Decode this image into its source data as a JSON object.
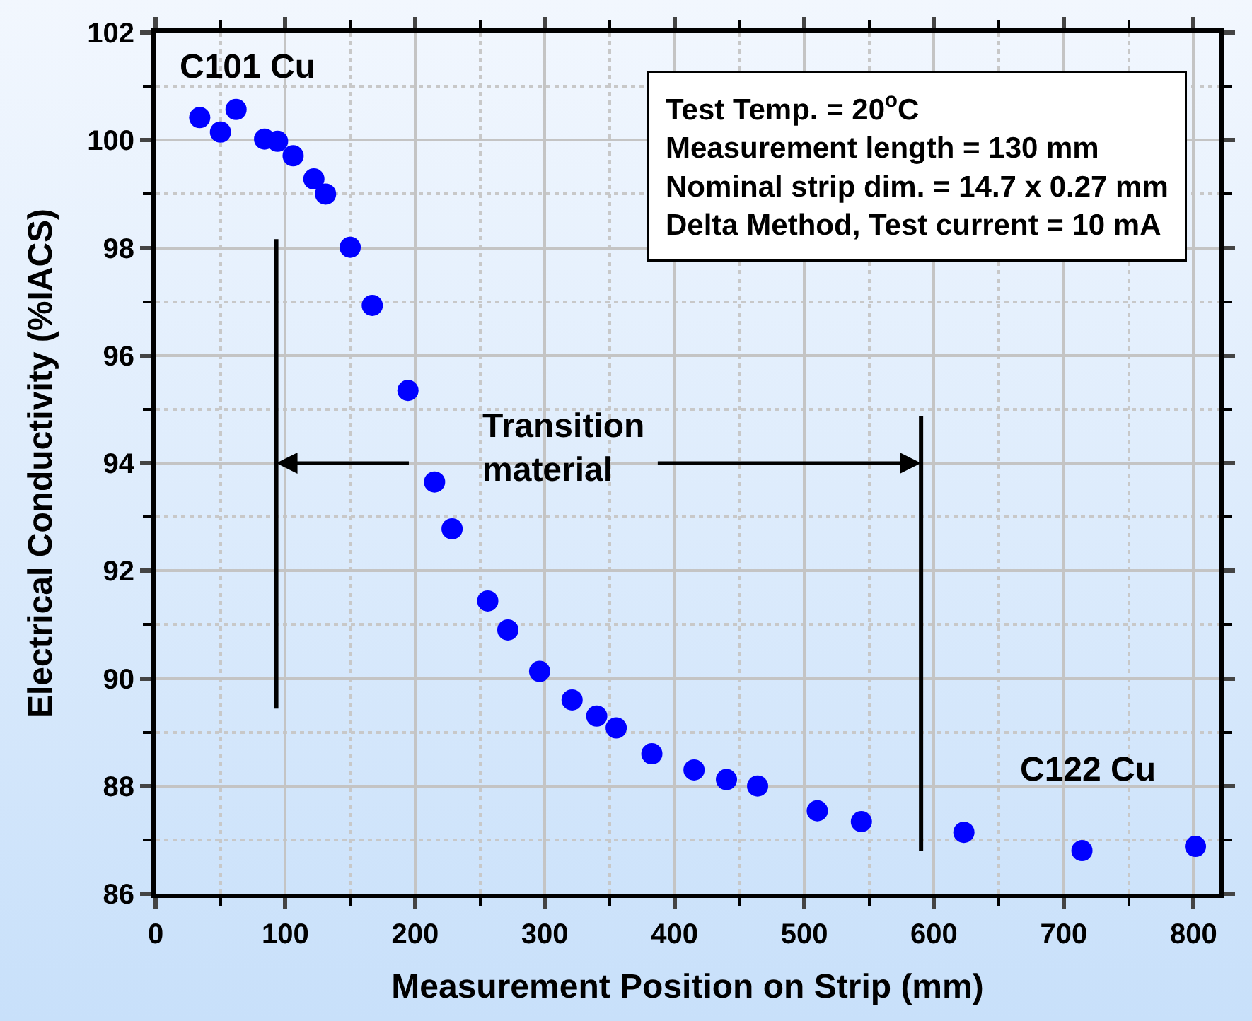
{
  "chart_data": {
    "type": "scatter",
    "xlabel": "Measurement Position on Strip (mm)",
    "ylabel": "Electrical Conductivity (%IACS)",
    "x": [
      34,
      50,
      62,
      84,
      94,
      106,
      122,
      131,
      150,
      167,
      194.5,
      215,
      228.5,
      256,
      271.5,
      296,
      321,
      340,
      355,
      382.5,
      415,
      440,
      464,
      510,
      544,
      623,
      714,
      801.5
    ],
    "series": [
      {
        "color": "#0000ff",
        "values": [
          100.42,
          100.15,
          100.57,
          100.02,
          99.98,
          99.71,
          99.28,
          99.0,
          98.01,
          96.93,
          95.35,
          93.65,
          92.78,
          91.44,
          90.9,
          90.13,
          89.6,
          89.3,
          89.08,
          88.6,
          88.3,
          88.12,
          88.0,
          87.54,
          87.34,
          87.14,
          86.8,
          86.88
        ]
      }
    ],
    "marker": "circle",
    "xlim": [
      0,
      820
    ],
    "xticks": [
      0,
      100,
      200,
      300,
      400,
      500,
      600,
      700,
      800
    ],
    "ylim": [
      86,
      102
    ],
    "yticks": [
      86,
      88,
      90,
      92,
      94,
      96,
      98,
      100,
      102
    ],
    "grid": true,
    "ref_lines": [
      {
        "axis": "x",
        "value": 93,
        "color": "#000000"
      },
      {
        "axis": "x",
        "value": 590,
        "color": "#000000"
      }
    ],
    "annotations": [
      "C101 Cu",
      "C122 Cu",
      {
        "text": "Transition\nmaterial",
        "x": 590,
        "y": 94
      },
      "Test Temp. = 20$^{o}$C\nMeasurement length = 130 mm\nNominal strip dim. = 14.7 x 0.27 mm\nDelta Method, Test current = 10 mA"
    ]
  }
}
